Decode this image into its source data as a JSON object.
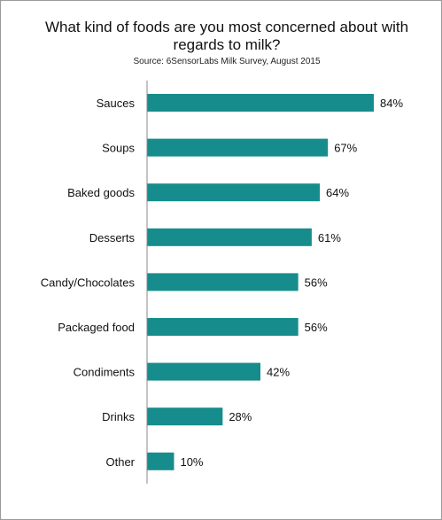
{
  "chart_data": {
    "type": "bar",
    "orientation": "horizontal",
    "title": "What kind of foods are you most concerned about with regards to milk?",
    "subtitle": "Source: 6SensorLabs Milk Survey, August 2015",
    "categories": [
      "Sauces",
      "Soups",
      "Baked goods",
      "Desserts",
      "Candy/Chocolates",
      "Packaged food",
      "Condiments",
      "Drinks",
      "Other"
    ],
    "values": [
      84,
      67,
      64,
      61,
      56,
      56,
      42,
      28,
      10
    ],
    "value_labels": [
      "84%",
      "67%",
      "64%",
      "61%",
      "56%",
      "56%",
      "42%",
      "28%",
      "10%"
    ],
    "xlim": [
      0,
      84
    ],
    "bar_color": "#178c8c",
    "axis_color": "#888888",
    "grid": false,
    "legend": "none"
  }
}
